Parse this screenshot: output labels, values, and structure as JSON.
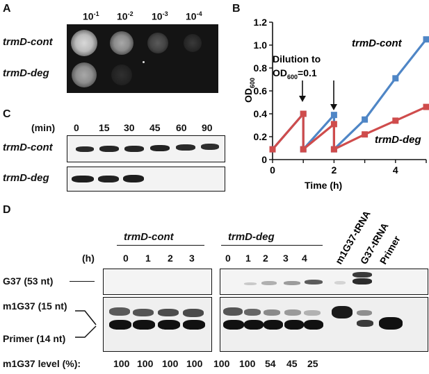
{
  "panelA": {
    "letter": "A",
    "dilutions": [
      "10",
      "10",
      "10",
      "10"
    ],
    "dilution_exps": [
      "-1",
      "-2",
      "-3",
      "-4"
    ],
    "rows": [
      "trmD-cont",
      "trmD-deg"
    ]
  },
  "panelB": {
    "letter": "B",
    "annotation_line1": "Dilution to",
    "annotation_line2_prefix": "OD",
    "annotation_line2_sub": "600",
    "annotation_line2_suffix": "=0.1",
    "label_cont": "trmD-cont",
    "label_deg": "trmD-deg"
  },
  "chart_data": {
    "type": "line",
    "xlabel": "Time (h)",
    "ylabel": "OD",
    "ylabel_sub": "600",
    "xlim": [
      0,
      5
    ],
    "ylim": [
      0,
      1.2
    ],
    "xticks": [
      "0",
      "2",
      "4"
    ],
    "yticks": [
      "0",
      "0.2",
      "0.4",
      "0.6",
      "0.8",
      "1.0",
      "1.2"
    ],
    "series": [
      {
        "name": "trmD-cont",
        "color": "#4f86c6",
        "points": [
          [
            0,
            0.09
          ],
          [
            1,
            0.4
          ],
          [
            1,
            0.09
          ],
          [
            2,
            0.39
          ],
          [
            2,
            0.09
          ],
          [
            3,
            0.35
          ],
          [
            4,
            0.71
          ],
          [
            5,
            1.05
          ]
        ]
      },
      {
        "name": "trmD-deg",
        "color": "#cf4c4c",
        "points": [
          [
            0,
            0.09
          ],
          [
            1,
            0.4
          ],
          [
            1,
            0.09
          ],
          [
            2,
            0.31
          ],
          [
            2,
            0.09
          ],
          [
            3,
            0.22
          ],
          [
            4,
            0.34
          ],
          [
            5,
            0.46
          ]
        ]
      }
    ]
  },
  "panelC": {
    "letter": "C",
    "unit": "(min)",
    "times": [
      "0",
      "15",
      "30",
      "45",
      "60",
      "90"
    ],
    "rows": [
      "trmD-cont",
      "trmD-deg"
    ]
  },
  "panelD": {
    "letter": "D",
    "group_cont": "trmD-cont",
    "group_deg": "trmD-deg",
    "hour_unit": "(h)",
    "lanes_cont": [
      "0",
      "1",
      "2",
      "3"
    ],
    "lanes_deg": [
      "0",
      "1",
      "2",
      "3",
      "4"
    ],
    "controls": [
      "m1G37-tRNA",
      "G37-tRNA",
      "Primer"
    ],
    "g37_label": "G37 (53 nt)",
    "m1g37_label": "m1G37 (15 nt)",
    "primer_label": "Primer (14 nt)",
    "level_label": "m1G37 level (%):",
    "levels": [
      "100",
      "100",
      "100",
      "100",
      "100",
      "100",
      "54",
      "45",
      "25"
    ]
  }
}
